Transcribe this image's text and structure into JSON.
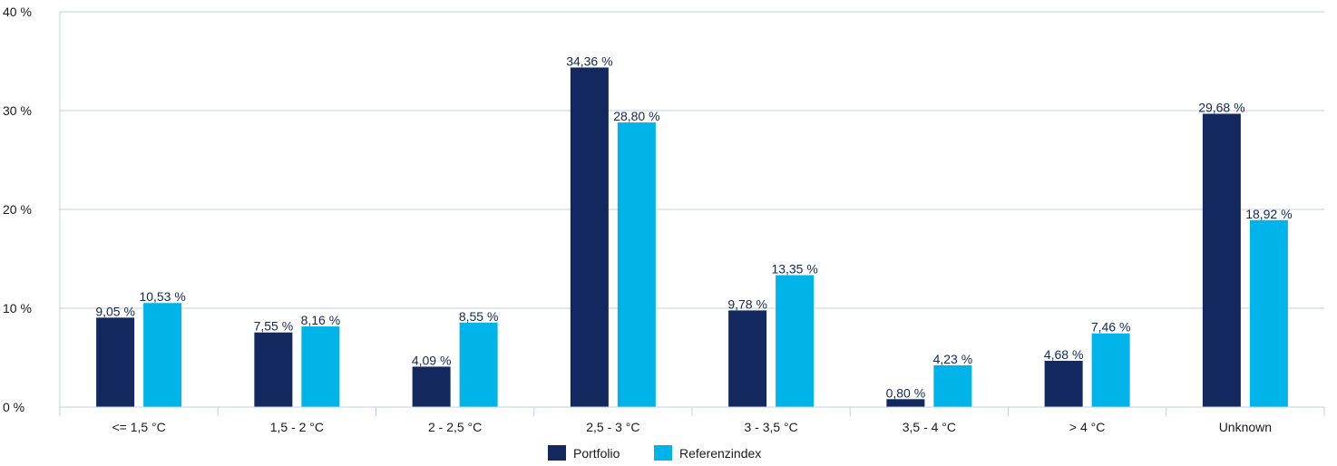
{
  "chart_data": {
    "type": "bar",
    "categories": [
      "<= 1,5 °C",
      "1,5 - 2 °C",
      "2 - 2,5 °C",
      "2,5 - 3 °C",
      "3 - 3,5 °C",
      "3,5 - 4 °C",
      "> 4 °C",
      "Unknown"
    ],
    "series": [
      {
        "name": "Portfolio",
        "color": "#12285f",
        "values": [
          9.05,
          7.55,
          4.09,
          34.36,
          9.78,
          0.8,
          4.68,
          29.68
        ],
        "labels": [
          "9,05 %",
          "7,55 %",
          "4,09 %",
          "34,36 %",
          "9,78 %",
          "0,80 %",
          "4,68 %",
          "29,68 %"
        ]
      },
      {
        "name": "Referenzindex",
        "color": "#00b3e8",
        "values": [
          10.53,
          8.16,
          8.55,
          28.8,
          13.35,
          4.23,
          7.46,
          18.92
        ],
        "labels": [
          "10,53 %",
          "8,16 %",
          "8,55 %",
          "28,80 %",
          "13,35 %",
          "4,23 %",
          "7,46 %",
          "18,92 %"
        ]
      }
    ],
    "yticks": [
      0,
      10,
      20,
      30,
      40
    ],
    "ytick_labels": [
      "0 %",
      "10 %",
      "20 %",
      "30 %",
      "40 %"
    ],
    "ylim": [
      0,
      40
    ],
    "grid": true,
    "legend_position": "bottom-center"
  }
}
